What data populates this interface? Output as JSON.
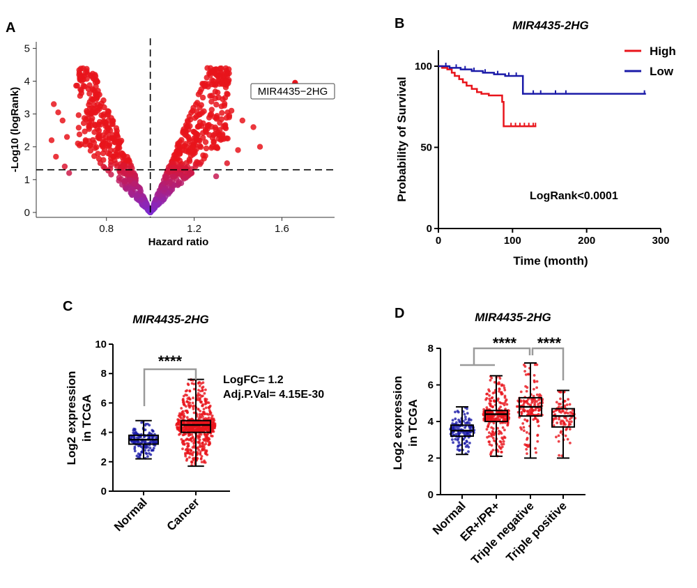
{
  "colors": {
    "high": "#e8141b",
    "low": "#1a1aa8",
    "normal_box": "#1a1aa8",
    "cancer_box": "#e8141b",
    "volcano_high": "#e8141b",
    "volcano_low": "#7d2ad0",
    "bracket": "#9a9a9a"
  },
  "panels": {
    "A": {
      "label": "A",
      "xlabel": "Hazard ratio",
      "ylabel": "-Log10 (logRank)",
      "highlight_label": "MIR4435−2HG"
    },
    "B": {
      "label": "B",
      "title": "MIR4435-2HG",
      "xlabel": "Time (month)",
      "ylabel": "Probability of Survival",
      "annotation": "LogRank<0.0001",
      "legend": [
        "High",
        "Low"
      ]
    },
    "C": {
      "label": "C",
      "title": "MIR4435-2HG",
      "ylabel_line1": "Log2 expression",
      "ylabel_line2": "in TCGA",
      "significance": "****",
      "stat_line1": "LogFC= 1.2",
      "stat_line2": "Adj.P.Val= 4.15E-30"
    },
    "D": {
      "label": "D",
      "title": "MIR4435-2HG",
      "ylabel_line1": "Log2 expression",
      "ylabel_line2": "in TCGA",
      "significance_1": "****",
      "significance_2": "****"
    }
  },
  "chart_data": [
    {
      "panel": "A",
      "type": "scatter",
      "xlabel": "Hazard ratio",
      "ylabel": "-Log10 (logRank)",
      "xlim": [
        0.48,
        1.84
      ],
      "ylim": [
        -0.15,
        5.2
      ],
      "x_ticks": [
        0.8,
        1.2,
        1.6
      ],
      "y_ticks": [
        0,
        1,
        2,
        3,
        4,
        5
      ],
      "reference_lines": {
        "vertical_x": 1.0,
        "horizontal_y": 1.3
      },
      "grid": false,
      "highlight": {
        "label": "MIR4435−2HG",
        "x": 1.66,
        "y": 3.95
      }
    },
    {
      "panel": "B",
      "type": "line",
      "title": "MIR4435-2HG",
      "xlabel": "Time (month)",
      "ylabel": "Probability of Survival",
      "xlim": [
        0,
        300
      ],
      "ylim": [
        0,
        100
      ],
      "x_ticks": [
        0,
        100,
        200,
        300
      ],
      "y_ticks": [
        0,
        50,
        100
      ],
      "legend_position": "top-right",
      "annotation": "LogRank<0.0001",
      "series": [
        {
          "name": "High",
          "steps": [
            [
              0,
              100
            ],
            [
              5,
              99
            ],
            [
              12,
              98
            ],
            [
              18,
              96
            ],
            [
              22,
              94
            ],
            [
              28,
              92
            ],
            [
              33,
              90
            ],
            [
              38,
              88
            ],
            [
              45,
              86
            ],
            [
              52,
              84
            ],
            [
              58,
              83
            ],
            [
              68,
              82
            ],
            [
              86,
              78
            ],
            [
              88,
              63
            ],
            [
              132,
              63
            ]
          ],
          "censor_x": [
            98,
            104,
            110,
            116,
            122,
            128,
            131
          ]
        },
        {
          "name": "Low",
          "steps": [
            [
              0,
              100
            ],
            [
              15,
              99
            ],
            [
              30,
              98
            ],
            [
              45,
              97
            ],
            [
              60,
              96
            ],
            [
              75,
              95
            ],
            [
              90,
              94
            ],
            [
              112,
              94
            ],
            [
              114,
              83
            ],
            [
              280,
              83
            ]
          ],
          "censor_x": [
            10,
            24,
            36,
            48,
            63,
            80,
            95,
            105,
            128,
            138,
            158,
            172,
            278
          ]
        }
      ]
    },
    {
      "panel": "C",
      "type": "box",
      "title": "MIR4435-2HG",
      "categories": [
        "Normal",
        "Cancer"
      ],
      "ylim": [
        0,
        10
      ],
      "y_ticks": [
        0,
        2,
        4,
        6,
        8,
        10
      ],
      "ylabel": "Log2 expression in TCGA",
      "boxes": [
        {
          "name": "Normal",
          "min": 2.2,
          "q1": 3.2,
          "median": 3.5,
          "q3": 3.8,
          "max": 4.8
        },
        {
          "name": "Cancer",
          "min": 1.7,
          "q1": 4.0,
          "median": 4.5,
          "q3": 4.8,
          "max": 7.6
        }
      ],
      "significance": "****",
      "stats": {
        "LogFC": "1.2",
        "Adj.P.Val": "4.15E-30"
      }
    },
    {
      "panel": "D",
      "type": "box",
      "title": "MIR4435-2HG",
      "categories": [
        "Normal",
        "ER+/PR+",
        "Triple negative",
        "Triple positive"
      ],
      "ylim": [
        0,
        8
      ],
      "y_ticks": [
        0,
        2,
        4,
        6,
        8
      ],
      "ylabel": "Log2 expression in TCGA",
      "boxes": [
        {
          "name": "Normal",
          "min": 2.2,
          "q1": 3.2,
          "median": 3.5,
          "q3": 3.8,
          "max": 4.8
        },
        {
          "name": "ER+/PR+",
          "min": 2.1,
          "q1": 4.0,
          "median": 4.4,
          "q3": 4.6,
          "max": 6.5
        },
        {
          "name": "Triple negative",
          "min": 2.0,
          "q1": 4.3,
          "median": 4.8,
          "q3": 5.3,
          "max": 7.2
        },
        {
          "name": "Triple positive",
          "min": 2.0,
          "q1": 3.7,
          "median": 4.3,
          "q3": 4.7,
          "max": 5.7
        }
      ],
      "significance": [
        "****",
        "****"
      ]
    }
  ]
}
